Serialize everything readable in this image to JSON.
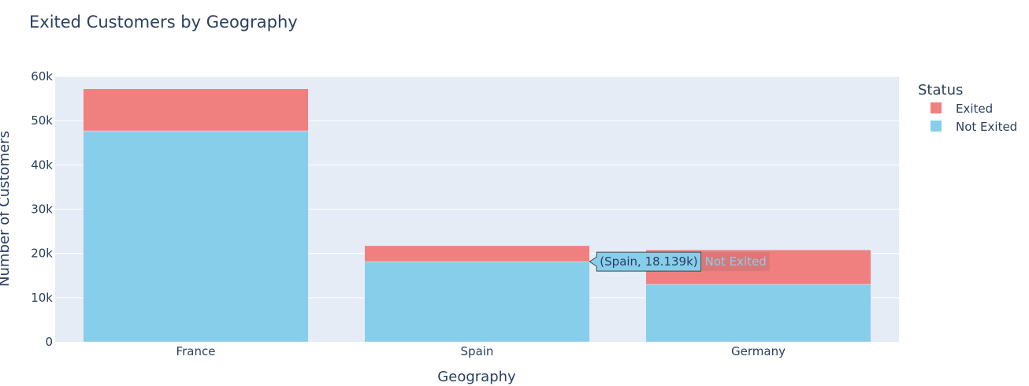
{
  "chart_data": {
    "type": "bar",
    "barmode": "stack",
    "title": "Exited Customers by Geography",
    "xlabel": "Geography",
    "ylabel": "Number of Customers",
    "categories": [
      "France",
      "Spain",
      "Germany"
    ],
    "ylim": [
      0,
      60000
    ],
    "yticks": [
      0,
      10000,
      20000,
      30000,
      40000,
      50000,
      60000
    ],
    "ytick_labels": [
      "0",
      "10k",
      "20k",
      "30k",
      "40k",
      "50k",
      "60k"
    ],
    "grid": true,
    "legend": {
      "title": "Status",
      "placement": "right"
    },
    "series": [
      {
        "name": "Not Exited",
        "color": "#87CEEB",
        "values": [
          47700,
          18139,
          13000
        ]
      },
      {
        "name": "Exited",
        "color": "#F08080",
        "values": [
          9500,
          3600,
          7800
        ]
      }
    ],
    "hover": {
      "text": "(Spain, 18.139k)",
      "series_name": "Not Exited",
      "category": "Spain",
      "value": 18139
    }
  },
  "colors": {
    "plot_bg": "#E5ECF6",
    "grid": "#ffffff",
    "text": "#2a3f5f"
  }
}
